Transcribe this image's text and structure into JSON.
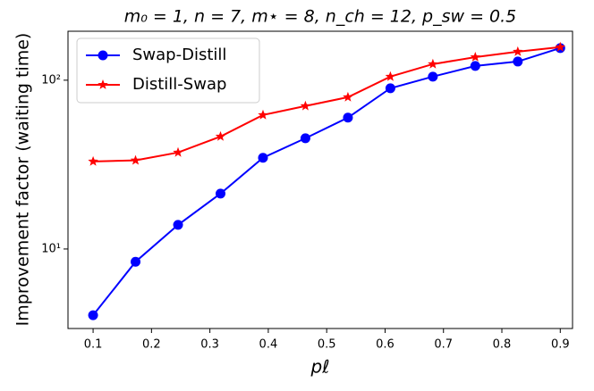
{
  "chart_data": {
    "type": "line",
    "title": "m₀ = 1, n = 7, m⋆ = 8, n_ch = 12, p_sw = 0.5",
    "x_label": "pℓ",
    "y_label": "Improvement factor (waiting time)",
    "x": [
      0.1,
      0.1727,
      0.2455,
      0.3182,
      0.3909,
      0.4636,
      0.5364,
      0.6091,
      0.6818,
      0.7545,
      0.8273,
      0.9
    ],
    "series": [
      {
        "name": "Swap-Distill",
        "color": "#0000ff",
        "marker": "circle",
        "values": [
          4.05,
          8.4,
          13.9,
          21.3,
          34.7,
          45.3,
          60,
          89.6,
          105,
          121.5,
          129,
          155
        ]
      },
      {
        "name": "Distill-Swap",
        "color": "#ff0000",
        "marker": "star",
        "values": [
          33,
          33.5,
          37.3,
          46.4,
          62.2,
          70.3,
          79.3,
          105,
          124.5,
          137,
          147.6,
          157
        ]
      }
    ],
    "xlim": [
      0.057,
      0.921
    ],
    "ylim": [
      3.38,
      195
    ],
    "xticks": [
      0.1,
      0.2,
      0.3,
      0.4,
      0.5,
      0.6,
      0.7,
      0.8,
      0.9
    ],
    "yticks": [
      {
        "value": 10,
        "label": "10¹"
      },
      {
        "value": 100,
        "label": "10²"
      }
    ],
    "log_y": true,
    "grid": false,
    "legend": "upper-left"
  }
}
